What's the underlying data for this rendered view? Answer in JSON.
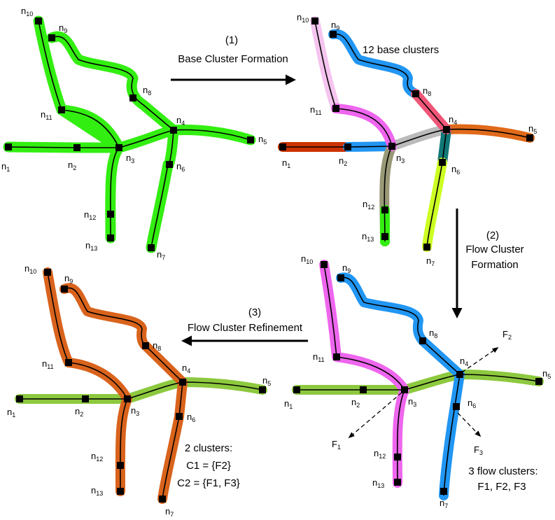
{
  "steps": [
    {
      "number": "(1)",
      "line1": "Base Cluster Formation",
      "line2": ""
    },
    {
      "number": "(2)",
      "line1": "Flow Cluster",
      "line2": "Formation"
    },
    {
      "number": "(3)",
      "line1": "Flow Cluster Refinement",
      "line2": ""
    }
  ],
  "captions": {
    "base_clusters": "12 base clusters",
    "flow_title": "3 flow clusters:",
    "flow_list": "F1, F2, F3",
    "refined_title": "2 clusters:",
    "c1": "C1 = {F2}",
    "c2": "C2 = {F1, F3}"
  },
  "flow_labels": [
    "F1",
    "F2",
    "F3"
  ],
  "node_labels": [
    "n1",
    "n2",
    "n3",
    "n4",
    "n5",
    "n6",
    "n7",
    "n8",
    "n9",
    "n10",
    "n11",
    "n12",
    "n13"
  ],
  "colors": {
    "base_green": "#33ee11",
    "blue": "#2196f3",
    "pink_light": "#f4c4ee",
    "magenta": "#ee66ee",
    "rose": "#ee5577",
    "red_brown": "#cc3300",
    "gray": "#bbbbbb",
    "orange": "#e06a1a",
    "teal": "#117777",
    "olive": "#999977",
    "lime": "#ccff22",
    "green_light": "#8dc93f",
    "refined_orange": "#d9631c"
  }
}
